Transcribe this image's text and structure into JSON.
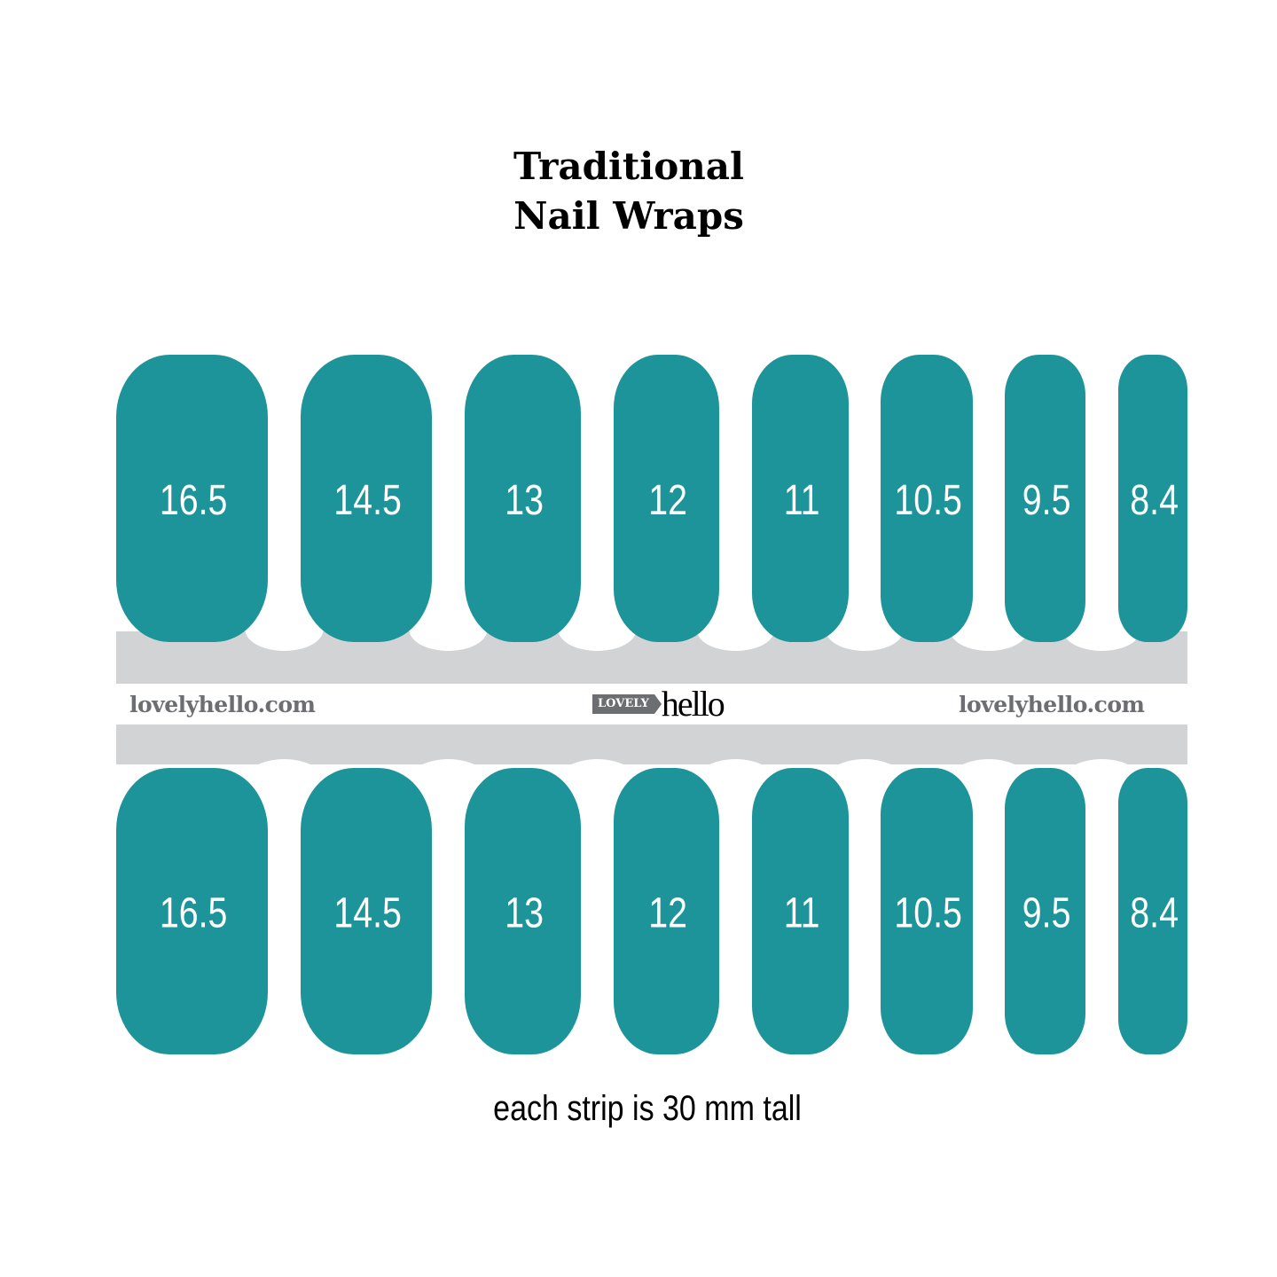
{
  "title": {
    "line1": "Traditional",
    "line2": "Nail Wraps"
  },
  "colors": {
    "nail": "#1c949a",
    "band": "#d1d3d4",
    "brand_gray": "#6d6e71"
  },
  "top_row": {
    "sizes": [
      "16.5",
      "14.5",
      "13",
      "12",
      "11",
      "10.5",
      "9.5",
      "8.4"
    ]
  },
  "bottom_row": {
    "sizes": [
      "16.5",
      "14.5",
      "13",
      "12",
      "11",
      "10.5",
      "9.5",
      "8.4"
    ]
  },
  "band": {
    "url_left": "lovelyhello.com",
    "url_right": "lovelyhello.com",
    "logo_tag": "LOVELY",
    "logo_word": "hello"
  },
  "caption": "each strip is 30 mm tall"
}
